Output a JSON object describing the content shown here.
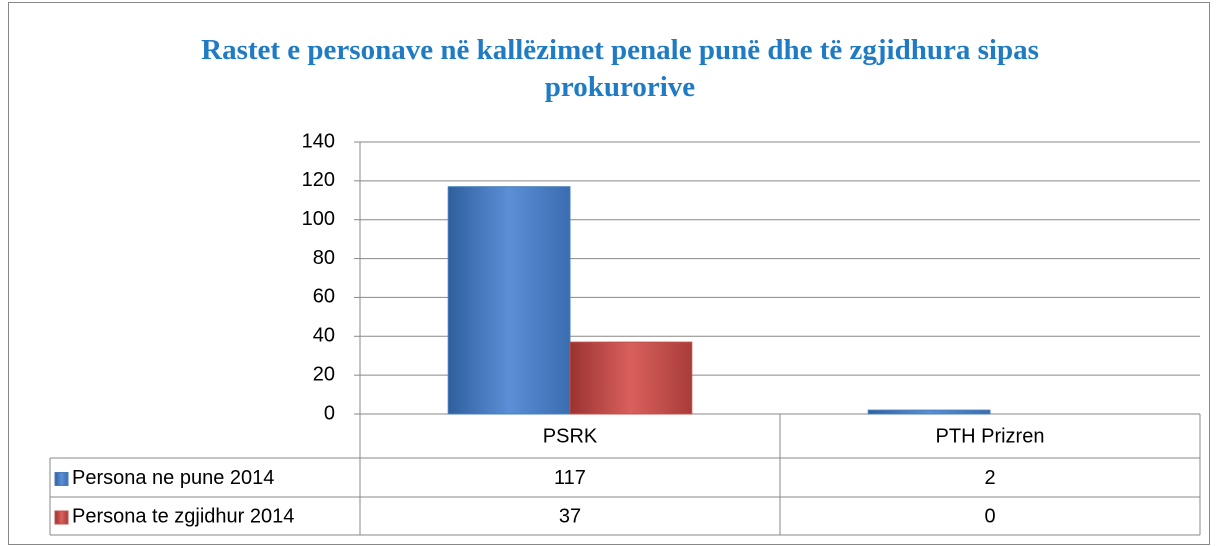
{
  "chart_data": {
    "type": "bar",
    "title": "Rastet e personave në kallëzimet penale  punë dhe të zgjidhura sipas prokurorive",
    "categories": [
      "PSRK",
      "PTH Prizren"
    ],
    "series": [
      {
        "name": "Persona ne pune 2014",
        "color": "#4a7ebb",
        "values": [
          117,
          2
        ]
      },
      {
        "name": "Persona te zgjidhur 2014",
        "color": "#c0504d",
        "values": [
          37,
          0
        ]
      }
    ],
    "ylim": [
      0,
      140
    ],
    "yticks": [
      0,
      20,
      40,
      60,
      80,
      100,
      120,
      140
    ],
    "grid": true
  }
}
